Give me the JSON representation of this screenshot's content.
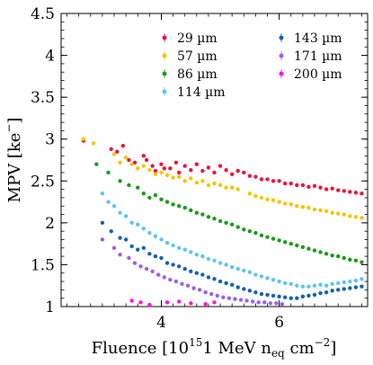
{
  "chart_data": {
    "type": "scatter",
    "xlabel": "Fluence [10",
    "xlabel_sup": "15",
    "xlabel_tail": "1 MeV n",
    "xlabel_sub": "eq",
    "xlabel_unit": " cm",
    "xlabel_unit_sup": "−2",
    "xlabel_close": "]",
    "ylabel": "MPV [ke",
    "ylabel_sup": "−",
    "ylabel_close": "]",
    "xlim": [
      2.3,
      7.5
    ],
    "ylim": [
      1,
      4.5
    ],
    "xticks": [
      4,
      6
    ],
    "xtick_labels": [
      "4",
      "6"
    ],
    "yticks": [
      1,
      1.5,
      2,
      2.5,
      3,
      3.5,
      4,
      4.5
    ],
    "ytick_labels": [
      "1",
      "1.5",
      "2",
      "2.5",
      "3",
      "3.5",
      "4",
      "4.5"
    ],
    "legend_placement": "top-right",
    "legend_columns": 2,
    "grid": false,
    "series": [
      {
        "name": "29 µm",
        "color": "#e8143c",
        "points": [
          [
            2.68,
            2.98
          ],
          [
            3.15,
            2.88
          ],
          [
            3.25,
            2.85
          ],
          [
            3.35,
            2.92
          ],
          [
            3.45,
            2.75
          ],
          [
            3.55,
            2.72
          ],
          [
            3.7,
            2.8
          ],
          [
            3.75,
            2.75
          ],
          [
            3.85,
            2.68
          ],
          [
            3.9,
            2.62
          ],
          [
            4.0,
            2.7
          ],
          [
            4.05,
            2.65
          ],
          [
            4.15,
            2.65
          ],
          [
            4.25,
            2.72
          ],
          [
            4.3,
            2.6
          ],
          [
            4.4,
            2.68
          ],
          [
            4.5,
            2.63
          ],
          [
            4.6,
            2.7
          ],
          [
            4.7,
            2.62
          ],
          [
            4.8,
            2.66
          ],
          [
            4.9,
            2.6
          ],
          [
            5.0,
            2.68
          ],
          [
            5.1,
            2.63
          ],
          [
            5.2,
            2.58
          ],
          [
            5.3,
            2.62
          ],
          [
            5.4,
            2.6
          ],
          [
            5.5,
            2.56
          ],
          [
            5.6,
            2.55
          ],
          [
            5.7,
            2.52
          ],
          [
            5.8,
            2.52
          ],
          [
            5.9,
            2.5
          ],
          [
            6.0,
            2.5
          ],
          [
            6.1,
            2.47
          ],
          [
            6.2,
            2.47
          ],
          [
            6.3,
            2.45
          ],
          [
            6.4,
            2.45
          ],
          [
            6.5,
            2.43
          ],
          [
            6.6,
            2.44
          ],
          [
            6.7,
            2.42
          ],
          [
            6.8,
            2.4
          ],
          [
            6.9,
            2.41
          ],
          [
            7.0,
            2.39
          ],
          [
            7.1,
            2.38
          ],
          [
            7.2,
            2.37
          ],
          [
            7.3,
            2.36
          ],
          [
            7.4,
            2.35
          ]
        ]
      },
      {
        "name": "57 µm",
        "color": "#f5c400",
        "points": [
          [
            2.68,
            3.0
          ],
          [
            2.85,
            2.95
          ],
          [
            3.2,
            2.82
          ],
          [
            3.3,
            2.72
          ],
          [
            3.4,
            2.78
          ],
          [
            3.5,
            2.7
          ],
          [
            3.6,
            2.65
          ],
          [
            3.7,
            2.68
          ],
          [
            3.8,
            2.63
          ],
          [
            3.9,
            2.58
          ],
          [
            4.0,
            2.6
          ],
          [
            4.1,
            2.57
          ],
          [
            4.2,
            2.54
          ],
          [
            4.3,
            2.55
          ],
          [
            4.4,
            2.5
          ],
          [
            4.5,
            2.53
          ],
          [
            4.6,
            2.48
          ],
          [
            4.7,
            2.5
          ],
          [
            4.8,
            2.45
          ],
          [
            4.9,
            2.47
          ],
          [
            5.0,
            2.45
          ],
          [
            5.1,
            2.42
          ],
          [
            5.2,
            2.42
          ],
          [
            5.3,
            2.4
          ],
          [
            5.5,
            2.35
          ],
          [
            5.6,
            2.32
          ],
          [
            5.7,
            2.3
          ],
          [
            5.8,
            2.28
          ],
          [
            5.9,
            2.27
          ],
          [
            6.0,
            2.25
          ],
          [
            6.1,
            2.23
          ],
          [
            6.2,
            2.22
          ],
          [
            6.3,
            2.2
          ],
          [
            6.4,
            2.19
          ],
          [
            6.5,
            2.18
          ],
          [
            6.6,
            2.16
          ],
          [
            6.7,
            2.15
          ],
          [
            6.8,
            2.14
          ],
          [
            6.9,
            2.12
          ],
          [
            7.0,
            2.11
          ],
          [
            7.1,
            2.1
          ],
          [
            7.2,
            2.08
          ],
          [
            7.3,
            2.07
          ],
          [
            7.4,
            2.06
          ]
        ]
      },
      {
        "name": "86 µm",
        "color": "#1a9a1a",
        "points": [
          [
            2.9,
            2.7
          ],
          [
            3.1,
            2.6
          ],
          [
            3.3,
            2.5
          ],
          [
            3.45,
            2.45
          ],
          [
            3.6,
            2.42
          ],
          [
            3.7,
            2.35
          ],
          [
            3.8,
            2.3
          ],
          [
            3.9,
            2.33
          ],
          [
            4.0,
            2.28
          ],
          [
            4.1,
            2.25
          ],
          [
            4.2,
            2.22
          ],
          [
            4.3,
            2.2
          ],
          [
            4.4,
            2.18
          ],
          [
            4.5,
            2.15
          ],
          [
            4.6,
            2.12
          ],
          [
            4.7,
            2.1
          ],
          [
            4.8,
            2.07
          ],
          [
            4.9,
            2.05
          ],
          [
            5.0,
            2.02
          ],
          [
            5.1,
            2.0
          ],
          [
            5.2,
            1.98
          ],
          [
            5.3,
            1.95
          ],
          [
            5.4,
            1.92
          ],
          [
            5.5,
            1.9
          ],
          [
            5.6,
            1.88
          ],
          [
            5.7,
            1.85
          ],
          [
            5.8,
            1.83
          ],
          [
            5.9,
            1.81
          ],
          [
            6.0,
            1.79
          ],
          [
            6.1,
            1.77
          ],
          [
            6.2,
            1.75
          ],
          [
            6.3,
            1.73
          ],
          [
            6.4,
            1.71
          ],
          [
            6.5,
            1.69
          ],
          [
            6.6,
            1.67
          ],
          [
            6.7,
            1.65
          ],
          [
            6.8,
            1.63
          ],
          [
            6.9,
            1.61
          ],
          [
            7.0,
            1.6
          ],
          [
            7.1,
            1.58
          ],
          [
            7.2,
            1.56
          ],
          [
            7.3,
            1.55
          ],
          [
            7.4,
            1.53
          ]
        ]
      },
      {
        "name": "114 µm",
        "color": "#5ec4f0",
        "points": [
          [
            3.0,
            2.35
          ],
          [
            3.1,
            2.25
          ],
          [
            3.2,
            2.2
          ],
          [
            3.3,
            2.12
          ],
          [
            3.4,
            2.08
          ],
          [
            3.5,
            2.0
          ],
          [
            3.6,
            1.98
          ],
          [
            3.7,
            1.93
          ],
          [
            3.8,
            1.88
          ],
          [
            3.9,
            1.84
          ],
          [
            4.0,
            1.8
          ],
          [
            4.1,
            1.76
          ],
          [
            4.2,
            1.73
          ],
          [
            4.3,
            1.7
          ],
          [
            4.4,
            1.68
          ],
          [
            4.5,
            1.65
          ],
          [
            4.6,
            1.62
          ],
          [
            4.7,
            1.6
          ],
          [
            4.8,
            1.57
          ],
          [
            4.9,
            1.55
          ],
          [
            5.0,
            1.52
          ],
          [
            5.1,
            1.5
          ],
          [
            5.2,
            1.47
          ],
          [
            5.3,
            1.45
          ],
          [
            5.4,
            1.43
          ],
          [
            5.5,
            1.41
          ],
          [
            5.6,
            1.38
          ],
          [
            5.7,
            1.36
          ],
          [
            5.8,
            1.34
          ],
          [
            5.9,
            1.32
          ],
          [
            6.0,
            1.3
          ],
          [
            6.1,
            1.28
          ],
          [
            6.2,
            1.27
          ],
          [
            6.3,
            1.25
          ],
          [
            6.4,
            1.24
          ],
          [
            6.5,
            1.24
          ],
          [
            6.6,
            1.25
          ],
          [
            6.7,
            1.26
          ],
          [
            6.8,
            1.25
          ],
          [
            6.9,
            1.27
          ],
          [
            7.0,
            1.28
          ],
          [
            7.1,
            1.29
          ],
          [
            7.2,
            1.3
          ],
          [
            7.3,
            1.31
          ],
          [
            7.4,
            1.33
          ]
        ]
      },
      {
        "name": "143 µm",
        "color": "#1560b0",
        "points": [
          [
            3.0,
            2.0
          ],
          [
            3.15,
            1.9
          ],
          [
            3.3,
            1.82
          ],
          [
            3.4,
            1.8
          ],
          [
            3.5,
            1.72
          ],
          [
            3.6,
            1.68
          ],
          [
            3.7,
            1.7
          ],
          [
            3.8,
            1.63
          ],
          [
            3.9,
            1.6
          ],
          [
            4.0,
            1.58
          ],
          [
            4.1,
            1.52
          ],
          [
            4.2,
            1.5
          ],
          [
            4.3,
            1.48
          ],
          [
            4.4,
            1.45
          ],
          [
            4.5,
            1.42
          ],
          [
            4.6,
            1.4
          ],
          [
            4.7,
            1.38
          ],
          [
            4.8,
            1.35
          ],
          [
            4.9,
            1.33
          ],
          [
            5.0,
            1.3
          ],
          [
            5.1,
            1.28
          ],
          [
            5.2,
            1.26
          ],
          [
            5.3,
            1.23
          ],
          [
            5.4,
            1.21
          ],
          [
            5.5,
            1.19
          ],
          [
            5.6,
            1.17
          ],
          [
            5.7,
            1.15
          ],
          [
            5.8,
            1.14
          ],
          [
            5.9,
            1.13
          ],
          [
            6.0,
            1.12
          ],
          [
            6.1,
            1.11
          ],
          [
            6.2,
            1.1
          ],
          [
            6.3,
            1.1
          ],
          [
            6.4,
            1.12
          ],
          [
            6.5,
            1.13
          ],
          [
            6.6,
            1.14
          ],
          [
            6.7,
            1.16
          ],
          [
            6.8,
            1.17
          ],
          [
            6.9,
            1.19
          ],
          [
            7.0,
            1.2
          ],
          [
            7.1,
            1.21
          ],
          [
            7.2,
            1.22
          ],
          [
            7.3,
            1.23
          ],
          [
            7.4,
            1.24
          ]
        ]
      },
      {
        "name": "171 µm",
        "color": "#9a60e8",
        "points": [
          [
            3.0,
            1.8
          ],
          [
            3.2,
            1.7
          ],
          [
            3.3,
            1.62
          ],
          [
            3.45,
            1.58
          ],
          [
            3.55,
            1.52
          ],
          [
            3.65,
            1.48
          ],
          [
            3.75,
            1.45
          ],
          [
            3.85,
            1.42
          ],
          [
            3.95,
            1.38
          ],
          [
            4.05,
            1.35
          ],
          [
            4.15,
            1.32
          ],
          [
            4.25,
            1.3
          ],
          [
            4.35,
            1.27
          ],
          [
            4.45,
            1.25
          ],
          [
            4.55,
            1.22
          ],
          [
            4.65,
            1.2
          ],
          [
            4.75,
            1.17
          ],
          [
            4.85,
            1.15
          ],
          [
            4.95,
            1.13
          ],
          [
            5.05,
            1.11
          ],
          [
            5.15,
            1.1
          ],
          [
            5.25,
            1.09
          ],
          [
            5.35,
            1.08
          ],
          [
            5.45,
            1.07
          ],
          [
            5.55,
            1.06
          ],
          [
            5.65,
            1.05
          ],
          [
            5.75,
            1.05
          ],
          [
            5.85,
            1.04
          ],
          [
            5.95,
            1.04
          ],
          [
            6.05,
            1.03
          ]
        ]
      },
      {
        "name": "200 µm",
        "color": "#ff10e0",
        "points": [
          [
            3.5,
            1.07
          ],
          [
            3.65,
            1.05
          ],
          [
            3.8,
            1.02
          ],
          [
            4.1,
            1.05
          ],
          [
            4.3,
            1.06
          ],
          [
            4.5,
            1.04
          ],
          [
            4.75,
            1.03
          ],
          [
            4.9,
            1.05
          ]
        ]
      }
    ]
  }
}
